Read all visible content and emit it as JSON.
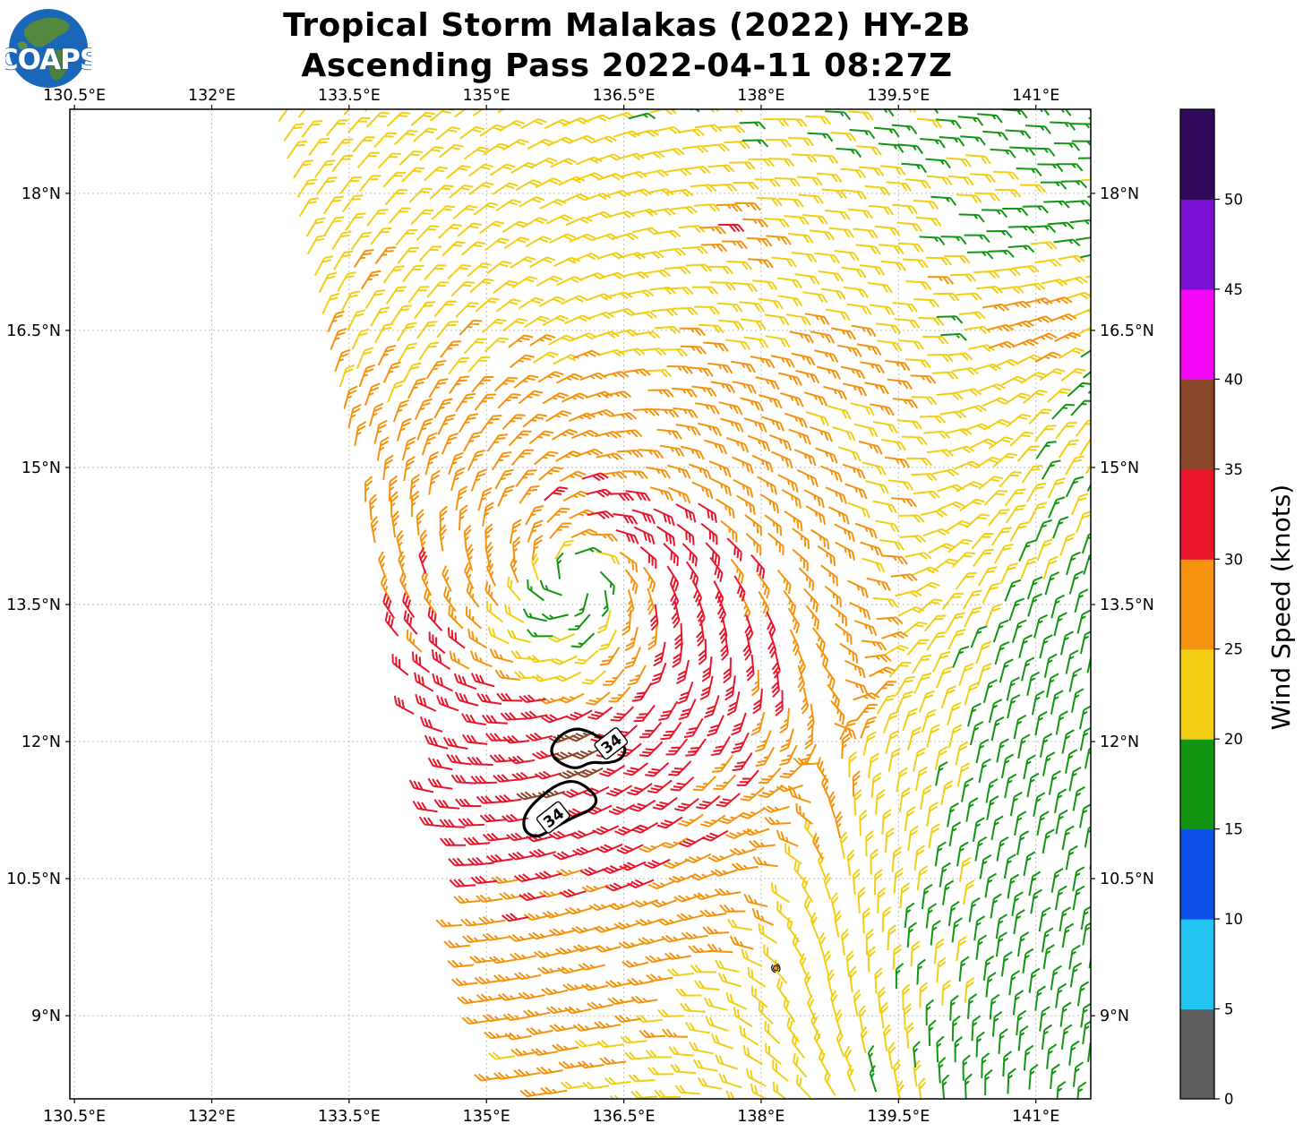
{
  "header": {
    "title_line1": "Tropical Storm Malakas (2022) HY-2B",
    "title_line2": "Ascending Pass 2022-04-11 08:27Z"
  },
  "logo": {
    "text": "COAPS",
    "globe_color": "#1a66b8",
    "land_color": "#55893f",
    "text_color": "#ffffff"
  },
  "axes": {
    "lon_range": [
      130.45,
      141.6
    ],
    "lat_range": [
      8.09,
      18.92
    ],
    "lon_ticks": [
      {
        "value": 130.5,
        "label": "130.5°E"
      },
      {
        "value": 132,
        "label": "132°E"
      },
      {
        "value": 133.5,
        "label": "133.5°E"
      },
      {
        "value": 135,
        "label": "135°E"
      },
      {
        "value": 136.5,
        "label": "136.5°E"
      },
      {
        "value": 138,
        "label": "138°E"
      },
      {
        "value": 139.5,
        "label": "139.5°E"
      },
      {
        "value": 141,
        "label": "141°E"
      }
    ],
    "lat_ticks": [
      {
        "value": 18,
        "label": "18°N"
      },
      {
        "value": 16.5,
        "label": "16.5°N"
      },
      {
        "value": 15,
        "label": "15°N"
      },
      {
        "value": 13.5,
        "label": "13.5°N"
      },
      {
        "value": 12,
        "label": "12°N"
      },
      {
        "value": 10.5,
        "label": "10.5°N"
      },
      {
        "value": 9,
        "label": "9°N"
      }
    ],
    "grid_color": "#b5b5b5",
    "frame_color": "#000000"
  },
  "colorbar": {
    "label": "Wind Speed (knots)",
    "tick_values": [
      0,
      5,
      10,
      15,
      20,
      25,
      30,
      35,
      40,
      45,
      50
    ],
    "bin_edges": [
      0,
      5,
      10,
      15,
      20,
      25,
      30,
      35,
      40,
      45,
      50,
      55
    ],
    "colors": [
      "#5e5e5e",
      "#23c3f2",
      "#0c4fe8",
      "#129612",
      "#f2ce15",
      "#f5930e",
      "#e8152b",
      "#8a4628",
      "#f407f4",
      "#7b0fd2",
      "#2f0a5a"
    ]
  },
  "chart_data": {
    "type": "wind-barb-map",
    "title": "Tropical Storm Malakas (2022) HY-2B — Ascending Pass 2022-04-11 08:27Z",
    "satellite": "HY-2B",
    "pass_type": "Ascending",
    "datetime_utc": "2022-04-11 08:27Z",
    "units": "knots",
    "storm_center": {
      "lon": 135.95,
      "lat": 13.74
    },
    "speed_bins_kt": {
      "edges": [
        15,
        20,
        25,
        30,
        35,
        40
      ],
      "color_indices": [
        3,
        4,
        5,
        6,
        7
      ]
    },
    "barb_grid": {
      "row_spacing_deg": 0.235,
      "col_spacing_deg": 0.215,
      "row_tilt_deg": 7,
      "col_tilt_deg": 13,
      "origin_lon": 130.2,
      "origin_lat": 19.35
    },
    "swath_left_edge": {
      "lon_at_lat_min": 135.21,
      "dlon_dlat": -0.245
    },
    "wind_model": {
      "radial_profile_r_deg": [
        0,
        0.22,
        0.45,
        0.8,
        1.6,
        2.4,
        3.2,
        4.0,
        5.0,
        6.0,
        7.5
      ],
      "radial_profile_kt": [
        16,
        17,
        23.5,
        29.5,
        30.5,
        28.8,
        26,
        23.5,
        21,
        19.5,
        18.5
      ],
      "inflow_angle_deg": 22,
      "background_flow_toward_deg_math": -100,
      "speed_clamp_kt": [
        15.4,
        37.5
      ],
      "max_wind_patches": [
        {
          "lon": 136.1,
          "lat": 11.95,
          "amp_kt": 7.0,
          "sigma_deg": 0.28
        },
        {
          "lon": 135.8,
          "lat": 11.3,
          "amp_kt": 6.5,
          "sigma_deg": 0.28
        }
      ]
    },
    "contours": [
      {
        "value_kt": 34,
        "label": "34",
        "points_lonlat": [
          [
            135.7,
            11.93
          ],
          [
            135.8,
            12.07
          ],
          [
            135.97,
            12.15
          ],
          [
            136.12,
            12.11
          ],
          [
            136.26,
            12.03
          ],
          [
            136.44,
            12.01
          ],
          [
            136.53,
            11.92
          ],
          [
            136.47,
            11.8
          ],
          [
            136.3,
            11.76
          ],
          [
            136.14,
            11.78
          ],
          [
            135.99,
            11.7
          ],
          [
            135.85,
            11.74
          ],
          [
            135.73,
            11.82
          ]
        ],
        "label_lonlat": [
          136.36,
          11.98
        ],
        "label_rotation_deg": -38
      },
      {
        "value_kt": 34,
        "label": "34",
        "points_lonlat": [
          [
            135.95,
            11.58
          ],
          [
            136.12,
            11.49
          ],
          [
            136.22,
            11.36
          ],
          [
            136.14,
            11.25
          ],
          [
            135.99,
            11.19
          ],
          [
            135.83,
            11.11
          ],
          [
            135.67,
            11.01
          ],
          [
            135.54,
            10.95
          ],
          [
            135.42,
            11.01
          ],
          [
            135.4,
            11.15
          ],
          [
            135.48,
            11.29
          ],
          [
            135.61,
            11.41
          ],
          [
            135.77,
            11.53
          ]
        ],
        "label_lonlat": [
          135.73,
          11.17
        ],
        "label_rotation_deg": -38
      }
    ],
    "storm_symbol": {
      "lon": 138.16,
      "lat": 9.52,
      "color": "#f5930e"
    }
  }
}
